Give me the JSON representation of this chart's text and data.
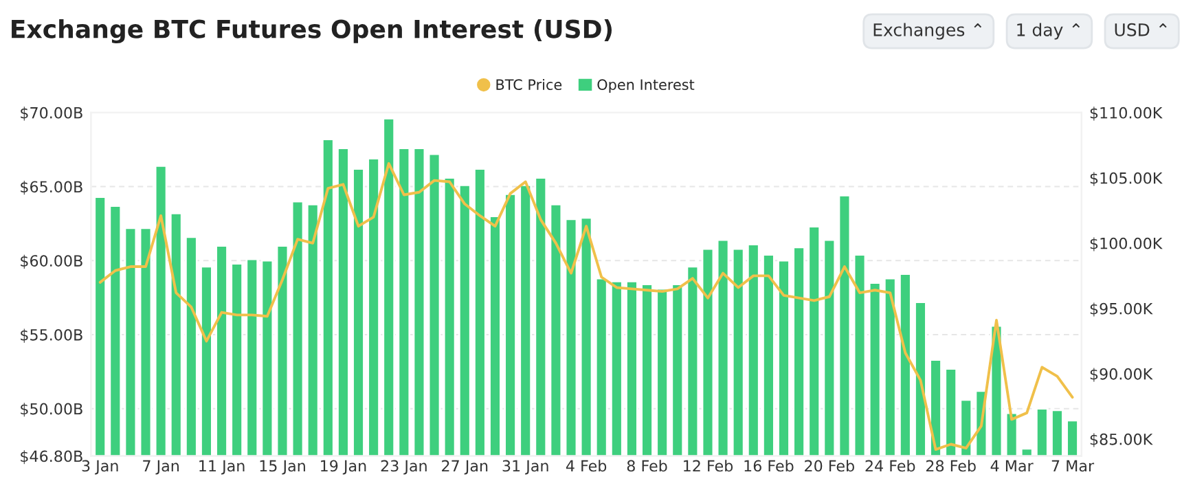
{
  "chart_data": {
    "type": "bar",
    "title": "Exchange BTC Futures Open Interest (USD)",
    "categories": [
      "3 Jan",
      null,
      null,
      null,
      "7 Jan",
      null,
      null,
      null,
      "11 Jan",
      null,
      null,
      null,
      "15 Jan",
      null,
      null,
      null,
      "19 Jan",
      null,
      null,
      null,
      "23 Jan",
      null,
      null,
      null,
      "27 Jan",
      null,
      null,
      null,
      "31 Jan",
      null,
      null,
      null,
      "4 Feb",
      null,
      null,
      null,
      "8 Feb",
      null,
      null,
      null,
      "12 Feb",
      null,
      null,
      null,
      "16 Feb",
      null,
      null,
      null,
      "20 Feb",
      null,
      null,
      null,
      "24 Feb",
      null,
      null,
      null,
      "28 Feb",
      null,
      null,
      null,
      "4 Mar",
      null,
      null,
      null,
      "7 Mar"
    ],
    "series": [
      {
        "name": "BTC Price",
        "type": "line",
        "axis": "y2",
        "color": "#f0c04a",
        "values": [
          97.0,
          97.9,
          98.2,
          98.2,
          102.1,
          96.2,
          95.1,
          92.5,
          94.7,
          94.5,
          94.5,
          94.4,
          97.2,
          100.3,
          100.0,
          104.2,
          104.5,
          101.3,
          102.0,
          106.1,
          103.7,
          103.9,
          104.8,
          104.7,
          103.0,
          102.1,
          101.3,
          103.8,
          104.7,
          101.8,
          100.0,
          97.7,
          101.3,
          97.4,
          96.6,
          96.5,
          96.4,
          96.3,
          96.5,
          97.3,
          95.8,
          97.7,
          96.6,
          97.5,
          97.5,
          96.0,
          95.8,
          95.6,
          95.9,
          98.2,
          96.2,
          96.4,
          96.2,
          91.6,
          89.5,
          84.2,
          84.6,
          84.3,
          86.0,
          94.1,
          86.5,
          87.0,
          90.5,
          89.8,
          88.2
        ]
      },
      {
        "name": "Open Interest",
        "color": "#3ecf7e",
        "values": [
          64.3,
          63.7,
          62.2,
          62.2,
          66.4,
          63.2,
          61.6,
          59.6,
          61.0,
          59.8,
          60.1,
          60.0,
          61.0,
          64.0,
          63.8,
          68.2,
          67.6,
          66.2,
          66.9,
          69.6,
          67.6,
          67.6,
          67.2,
          65.6,
          65.1,
          66.2,
          63.0,
          64.5,
          65.1,
          65.6,
          63.8,
          62.8,
          62.9,
          58.8,
          58.6,
          58.6,
          58.4,
          58.1,
          58.4,
          59.6,
          60.8,
          61.4,
          60.8,
          61.1,
          60.4,
          60.0,
          60.9,
          62.3,
          61.4,
          64.4,
          60.4,
          58.5,
          58.8,
          59.1,
          57.2,
          53.3,
          52.7,
          50.6,
          51.2,
          55.6,
          49.7,
          47.3,
          50.0,
          49.9,
          49.2
        ]
      }
    ],
    "ylim": [
      46.8,
      70
    ],
    "yticks": [
      {
        "value": 46.8,
        "label": "$46.80B"
      },
      {
        "value": 50,
        "label": "$50.00B"
      },
      {
        "value": 55,
        "label": "$55.00B"
      },
      {
        "value": 60,
        "label": "$60.00B"
      },
      {
        "value": 65,
        "label": "$65.00B"
      },
      {
        "value": 70,
        "label": "$70.00B"
      }
    ],
    "y2lim": [
      83.7,
      110
    ],
    "y2ticks": [
      {
        "value": 85,
        "label": "$85.00K"
      },
      {
        "value": 90,
        "label": "$90.00K"
      },
      {
        "value": 95,
        "label": "$95.00K"
      },
      {
        "value": 100,
        "label": "$100.00K"
      },
      {
        "value": 105,
        "label": "$105.00K"
      },
      {
        "value": 110,
        "label": "$110.00K"
      }
    ],
    "grid": "y",
    "legend": "top",
    "annotations": [
      "Exchanges ⌃",
      "1 day ⌃",
      "USD ⌃"
    ]
  }
}
